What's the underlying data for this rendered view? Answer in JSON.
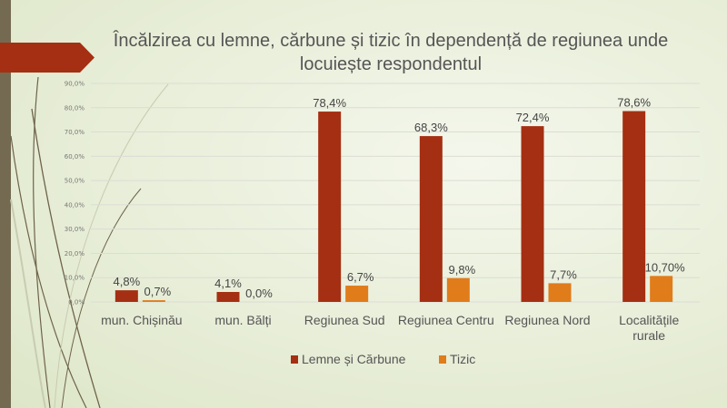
{
  "slide": {
    "accent_color": "#a52f12",
    "strip_color": "#746a52"
  },
  "chart_data": {
    "type": "bar",
    "title": "Încălzirea cu lemne, cărbune și tizic în dependență de regiunea unde locuiește respondentul",
    "categories": [
      "mun. Chișinău",
      "mun. Bălți",
      "Regiunea Sud",
      "Regiunea Centru",
      "Regiunea Nord",
      "Localitățile rurale"
    ],
    "series": [
      {
        "name": "Lemne și Cărbune",
        "color": "#a52f12",
        "values": [
          4.8,
          4.1,
          78.4,
          68.3,
          72.4,
          78.6
        ],
        "labels": [
          "4,8%",
          "4,1%",
          "78,4%",
          "68,3%",
          "72,4%",
          "78,6%"
        ]
      },
      {
        "name": "Tizic",
        "color": "#e07c1a",
        "values": [
          0.7,
          0.0,
          6.7,
          9.8,
          7.7,
          10.7
        ],
        "labels": [
          "0,7%",
          "0,0%",
          "6,7%",
          "9,8%",
          "7,7%",
          "10,70%"
        ]
      }
    ],
    "yticks": [
      "0,0%",
      "10,0%",
      "20,0%",
      "30,0%",
      "40,0%",
      "50,0%",
      "60,0%",
      "70,0%",
      "80,0%",
      "90,0%"
    ],
    "ylim": [
      0,
      90
    ],
    "grid": true,
    "legend": "bottom"
  }
}
